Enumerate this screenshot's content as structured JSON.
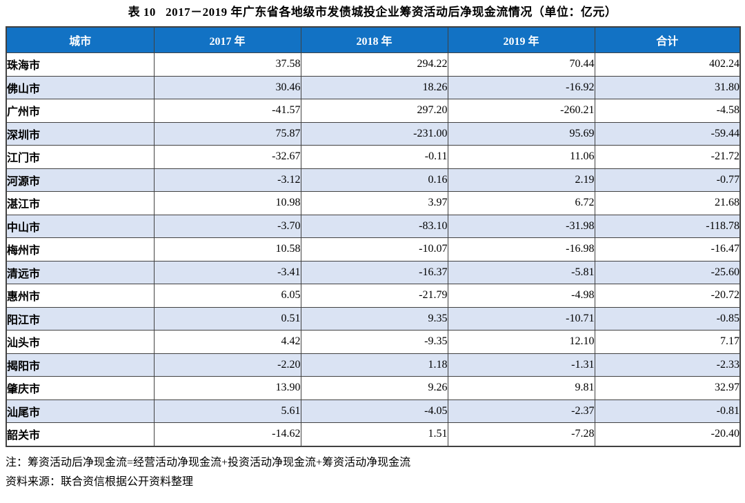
{
  "title": "表 10   2017－2019 年广东省各地级市发债城投企业筹资活动后净现金流情况（单位：亿元）",
  "table": {
    "columns": [
      "城市",
      "2017 年",
      "2018 年",
      "2019 年",
      "合计"
    ],
    "rows": [
      {
        "city": "珠海市",
        "values": [
          "37.58",
          "294.22",
          "70.44",
          "402.24"
        ]
      },
      {
        "city": "佛山市",
        "values": [
          "30.46",
          "18.26",
          "-16.92",
          "31.80"
        ]
      },
      {
        "city": "广州市",
        "values": [
          "-41.57",
          "297.20",
          "-260.21",
          "-4.58"
        ]
      },
      {
        "city": "深圳市",
        "values": [
          "75.87",
          "-231.00",
          "95.69",
          "-59.44"
        ]
      },
      {
        "city": "江门市",
        "values": [
          "-32.67",
          "-0.11",
          "11.06",
          "-21.72"
        ]
      },
      {
        "city": "河源市",
        "values": [
          "-3.12",
          "0.16",
          "2.19",
          "-0.77"
        ]
      },
      {
        "city": "湛江市",
        "values": [
          "10.98",
          "3.97",
          "6.72",
          "21.68"
        ]
      },
      {
        "city": "中山市",
        "values": [
          "-3.70",
          "-83.10",
          "-31.98",
          "-118.78"
        ]
      },
      {
        "city": "梅州市",
        "values": [
          "10.58",
          "-10.07",
          "-16.98",
          "-16.47"
        ]
      },
      {
        "city": "清远市",
        "values": [
          "-3.41",
          "-16.37",
          "-5.81",
          "-25.60"
        ]
      },
      {
        "city": "惠州市",
        "values": [
          "6.05",
          "-21.79",
          "-4.98",
          "-20.72"
        ]
      },
      {
        "city": "阳江市",
        "values": [
          "0.51",
          "9.35",
          "-10.71",
          "-0.85"
        ]
      },
      {
        "city": "汕头市",
        "values": [
          "4.42",
          "-9.35",
          "12.10",
          "7.17"
        ]
      },
      {
        "city": "揭阳市",
        "values": [
          "-2.20",
          "1.18",
          "-1.31",
          "-2.33"
        ]
      },
      {
        "city": "肇庆市",
        "values": [
          "13.90",
          "9.26",
          "9.81",
          "32.97"
        ]
      },
      {
        "city": "汕尾市",
        "values": [
          "5.61",
          "-4.05",
          "-2.37",
          "-0.81"
        ]
      },
      {
        "city": "韶关市",
        "values": [
          "-14.62",
          "1.51",
          "-7.28",
          "-20.40"
        ]
      }
    ]
  },
  "notes": {
    "note": "注：筹资活动后净现金流=经营活动净现金流+投资活动净现金流+筹资活动净现金流",
    "source": "资料来源：联合资信根据公开资料整理"
  },
  "colors": {
    "header_bg": "#1272c4",
    "header_fg": "#ffffff",
    "row_alt_bg": "#dae3f3",
    "border": "#404040"
  }
}
